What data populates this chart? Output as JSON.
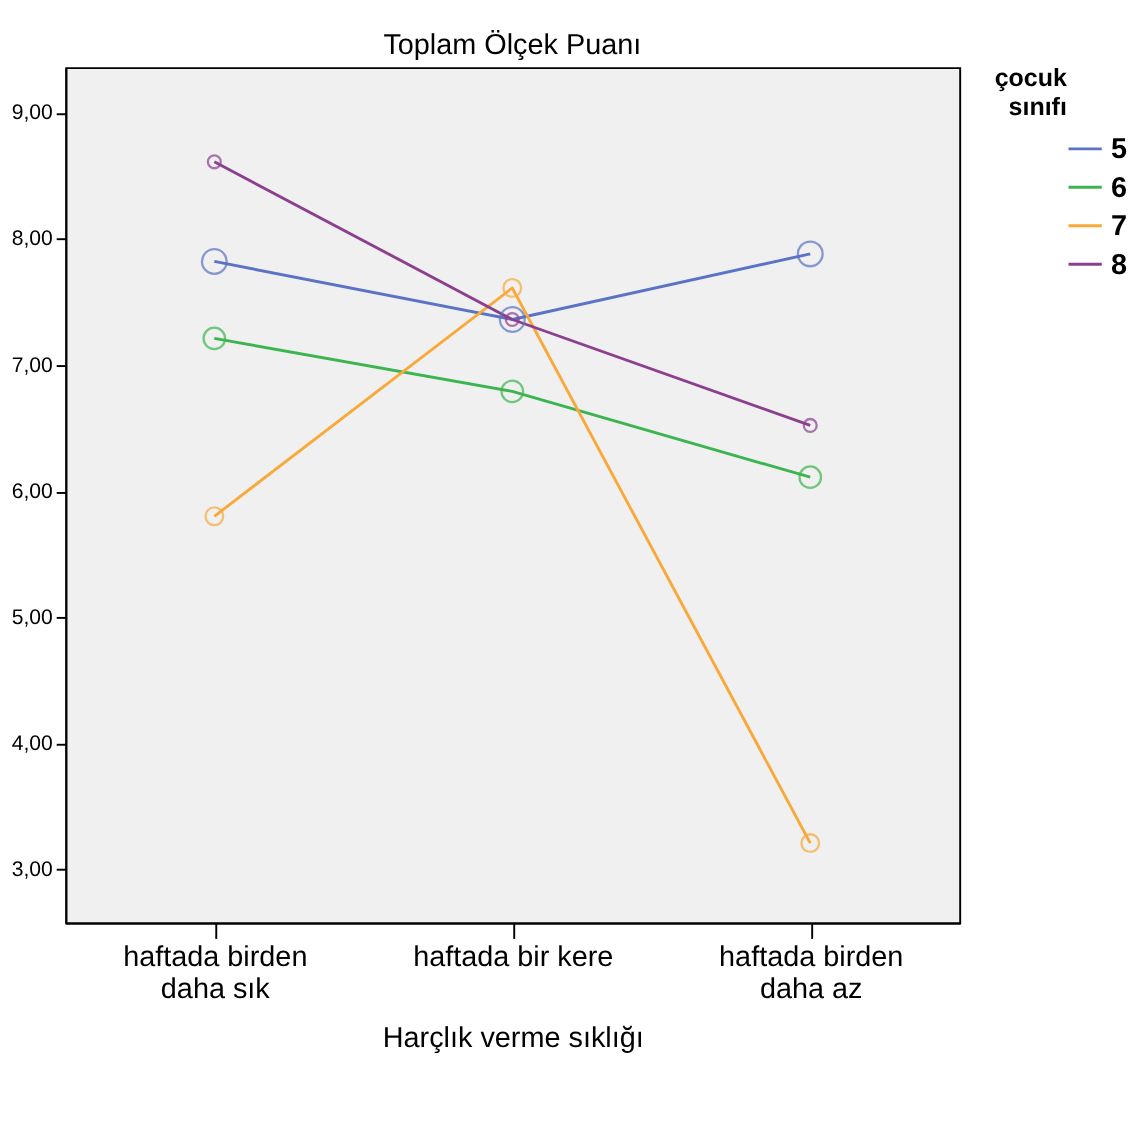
{
  "chart_data": {
    "type": "line",
    "title": "Toplam Ölçek Puanı",
    "xlabel": "Harçlık verme sıklığı",
    "legend_title": "çocuk sınıfı",
    "categories": [
      "haftada birden daha sık",
      "haftada bir kere",
      "haftada birden daha az"
    ],
    "series": [
      {
        "name": "5",
        "color": "#5b73c4",
        "values": [
          7.82,
          7.36,
          7.88
        ]
      },
      {
        "name": "6",
        "color": "#3cb550",
        "values": [
          7.21,
          6.79,
          6.11
        ]
      },
      {
        "name": "7",
        "color": "#f9a93a",
        "values": [
          5.8,
          7.61,
          3.21
        ]
      },
      {
        "name": "8",
        "color": "#8c3f8f",
        "values": [
          8.61,
          7.36,
          6.52
        ]
      }
    ],
    "ylim": [
      2.58,
      9.36
    ],
    "yticks": [
      {
        "value": 3,
        "label": "3,00"
      },
      {
        "value": 4,
        "label": "4,00"
      },
      {
        "value": 5,
        "label": "5,00"
      },
      {
        "value": 6,
        "label": "6,00"
      },
      {
        "value": 7,
        "label": "7,00"
      },
      {
        "value": 8,
        "label": "8,00"
      },
      {
        "value": 9,
        "label": "9,00"
      }
    ],
    "grid": false,
    "legend": "top right",
    "marker": "circle",
    "line_style": "solid"
  }
}
